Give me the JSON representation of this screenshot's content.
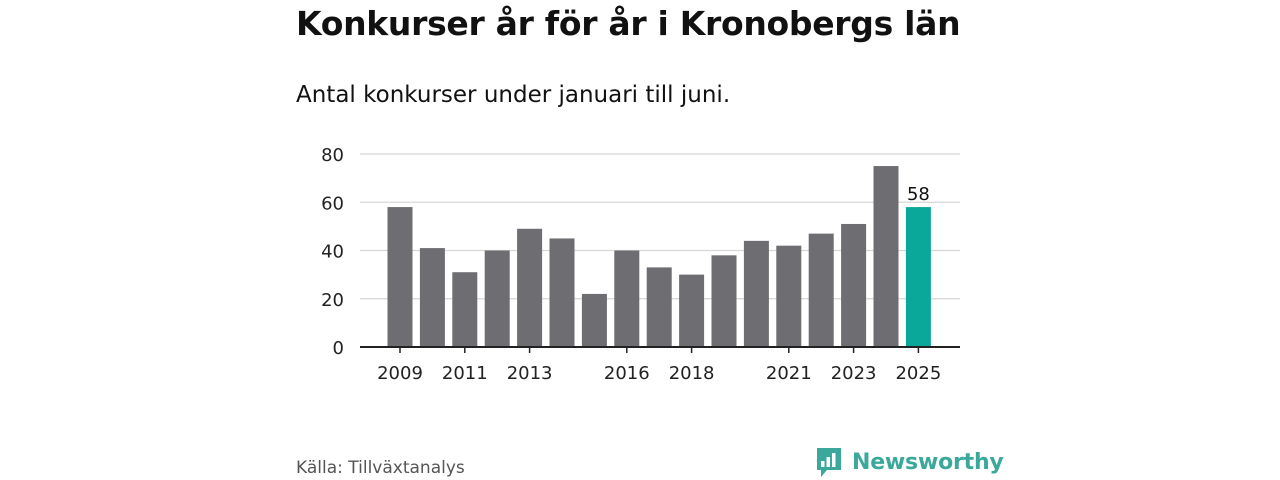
{
  "header": {
    "title": "Konkurser år för år i Kronobergs län",
    "subtitle": "Antal konkurser under januari till juni."
  },
  "footer": {
    "source": "Källa: Tillväxtanalys",
    "brand": "Newsworthy",
    "brand_icon": "newsworthy-logo-icon"
  },
  "colors": {
    "bar": "#6e6d72",
    "highlight": "#0aa79b",
    "grid": "#d6d6d6",
    "axis": "#222222",
    "brand": "#3aa89a"
  },
  "chart_data": {
    "type": "bar",
    "title": "Konkurser år för år i Kronobergs län",
    "subtitle": "Antal konkurser under januari till juni.",
    "categories": [
      "2009",
      "2010",
      "2011",
      "2012",
      "2013",
      "2014",
      "2015",
      "2016",
      "2017",
      "2018",
      "2019",
      "2020",
      "2021",
      "2022",
      "2023",
      "2024",
      "2025"
    ],
    "values": [
      58,
      41,
      31,
      40,
      49,
      45,
      22,
      40,
      33,
      30,
      38,
      44,
      42,
      47,
      51,
      75,
      58
    ],
    "x_tick_labels": [
      "2009",
      "2011",
      "2013",
      "2016",
      "2018",
      "2021",
      "2023",
      "2025"
    ],
    "y_ticks": [
      0,
      20,
      40,
      60,
      80
    ],
    "ylim": [
      0,
      80
    ],
    "xlabel": "",
    "ylabel": "",
    "grid": true,
    "highlight_category": "2025",
    "data_labels": [
      {
        "category": "2025",
        "text": "58"
      }
    ]
  }
}
